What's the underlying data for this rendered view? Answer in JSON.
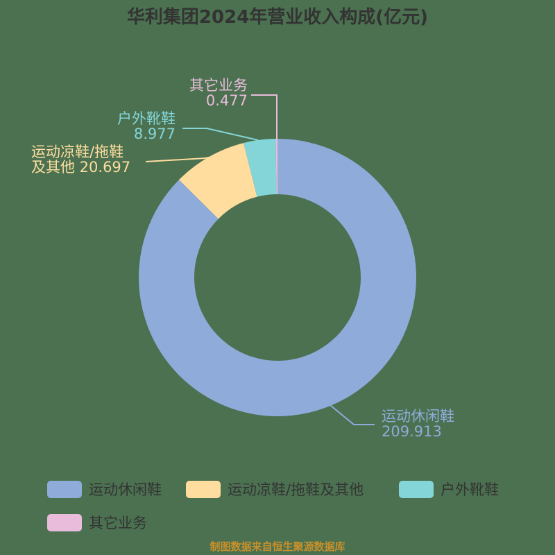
{
  "title": "华利集团2024年营业收入构成(亿元)",
  "colors": {
    "background": "#4b7150",
    "title": "#333333",
    "footer": "#c8902a"
  },
  "chart_data": {
    "type": "pie",
    "subtype": "donut",
    "title": "华利集团2024年营业收入构成(亿元)",
    "unit": "亿元",
    "categories": [
      "运动休闲鞋",
      "运动凉鞋/拖鞋及其他",
      "户外靴鞋",
      "其它业务"
    ],
    "values": [
      209.913,
      20.697,
      8.977,
      0.477
    ],
    "colors": [
      "#8fabd9",
      "#fedd9e",
      "#84d5d8",
      "#e9bcdb"
    ],
    "inner_radius_ratio": 0.6,
    "legend_position": "bottom"
  },
  "labels": [
    {
      "name": "运动休闲鞋",
      "line1": "运动休闲鞋",
      "line2": "209.913"
    },
    {
      "name": "运动凉鞋/拖鞋及其他",
      "line1": "运动凉鞋/拖鞋",
      "line2": "及其他 20.697"
    },
    {
      "name": "户外靴鞋",
      "line1": "户外靴鞋",
      "line2": "8.977"
    },
    {
      "name": "其它业务",
      "line1": "其它业务",
      "line2": "0.477"
    }
  ],
  "legend": [
    {
      "label": "运动休闲鞋"
    },
    {
      "label": "运动凉鞋/拖鞋及其他"
    },
    {
      "label": "户外靴鞋"
    },
    {
      "label": "其它业务"
    }
  ],
  "footer": "制图数据来自恒生聚源数据库"
}
